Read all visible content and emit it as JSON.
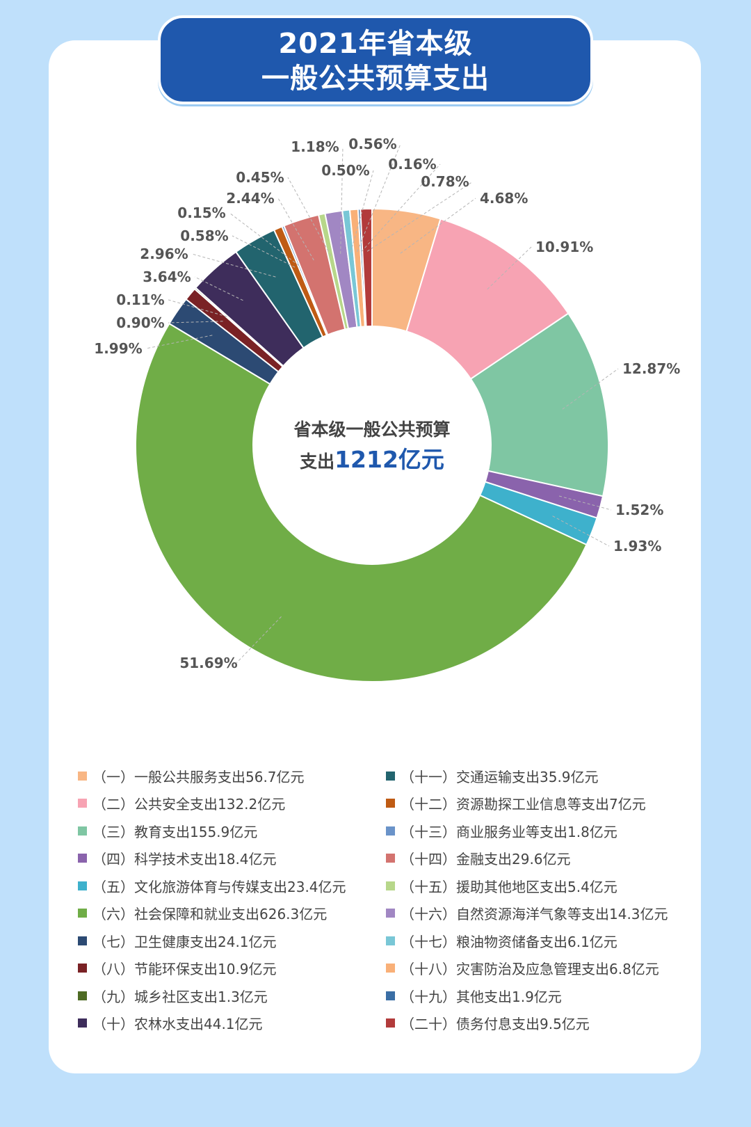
{
  "header": {
    "title_line1": "2021年省本级",
    "title_line2": "一般公共预算支出"
  },
  "chart_data": {
    "type": "pie",
    "title": "2021年省本级一般公共预算支出",
    "center_label_line1": "省本级一般公共预算",
    "center_label_prefix": "支出",
    "center_label_value": "1212亿元",
    "labels": [
      "（一）一般公共服务支出56.7亿元",
      "（二）公共安全支出132.2亿元",
      "（三）教育支出155.9亿元",
      "（四）科学技术支出18.4亿元",
      "（五）文化旅游体育与传媒支出23.4亿元",
      "（六）社会保障和就业支出626.3亿元",
      "（七）卫生健康支出24.1亿元",
      "（八）节能环保支出10.9亿元",
      "（九）城乡社区支出1.3亿元",
      "（十）农林水支出44.1亿元",
      "（十一）交通运输支出35.9亿元",
      "（十二）资源勘探工业信息等支出7亿元",
      "（十三）商业服务业等支出1.8亿元",
      "（十四）金融支出29.6亿元",
      "（十五）援助其他地区支出5.4亿元",
      "（十六）自然资源海洋气象等支出14.3亿元",
      "（十七）粮油物资储备支出6.1亿元",
      "（十八）灾害防治及应急管理支出6.8亿元",
      "（十九）其他支出1.9亿元",
      "（二十）债务付息支出9.5亿元"
    ],
    "values": [
      56.7,
      132.2,
      155.9,
      18.4,
      23.4,
      626.3,
      24.1,
      10.9,
      1.3,
      44.1,
      35.9,
      7,
      1.8,
      29.6,
      5.4,
      14.3,
      6.1,
      6.8,
      1.9,
      9.5
    ],
    "percent_labels": [
      "4.68%",
      "10.91%",
      "12.87%",
      "1.52%",
      "1.93%",
      "51.69%",
      "1.99%",
      "0.90%",
      "0.11%",
      "3.64%",
      "2.96%",
      "0.58%",
      "0.15%",
      "2.44%",
      "0.45%",
      "1.18%",
      "0.50%",
      "0.56%",
      "0.16%",
      "0.78%"
    ],
    "colors": [
      "#f8b684",
      "#f7a3b3",
      "#7fc6a3",
      "#8a63ac",
      "#3eb1cc",
      "#70ad47",
      "#2c4a73",
      "#7a2225",
      "#4e6b24",
      "#3e2d5b",
      "#22646e",
      "#bf5b14",
      "#6a93c9",
      "#d3736f",
      "#b7d78a",
      "#a187c3",
      "#79c7d6",
      "#f9b078",
      "#3a6ea5",
      "#b23b3b"
    ]
  }
}
